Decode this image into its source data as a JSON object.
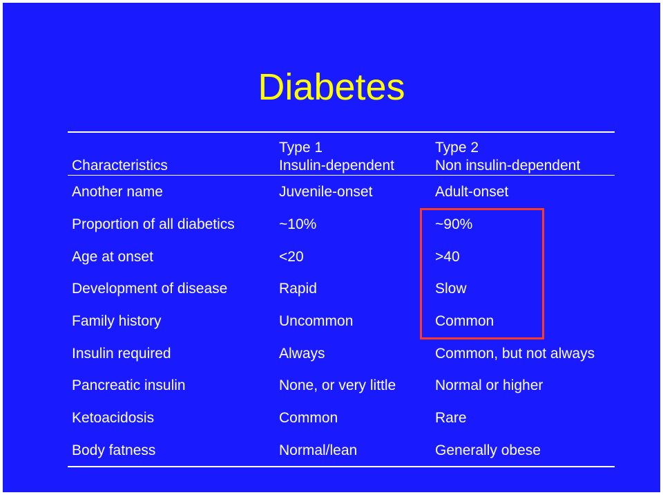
{
  "title": "Diabetes",
  "colors": {
    "background": "#1a1aff",
    "title": "#ffff00",
    "text": "#ffffff",
    "highlight": "#ff3b1f"
  },
  "header": {
    "col1": "Characteristics",
    "col2_line1": "Type 1",
    "col2_line2": "Insulin-dependent",
    "col3_line1": "Type 2",
    "col3_line2": "Non insulin-dependent"
  },
  "rows": [
    {
      "characteristic": "Another name",
      "type1": "Juvenile-onset",
      "type2": "Adult-onset"
    },
    {
      "characteristic": "Proportion of all diabetics",
      "type1": "~10%",
      "type2": "~90%"
    },
    {
      "characteristic": "Age at onset",
      "type1": "<20",
      "type2": ">40"
    },
    {
      "characteristic": "Development of disease",
      "type1": "Rapid",
      "type2": "Slow"
    },
    {
      "characteristic": "Family history",
      "type1": "Uncommon",
      "type2": "Common"
    },
    {
      "characteristic": "Insulin required",
      "type1": "Always",
      "type2": "Common, but not always"
    },
    {
      "characteristic": "Pancreatic insulin",
      "type1": "None, or very little",
      "type2": "Normal or higher"
    },
    {
      "characteristic": "Ketoacidosis",
      "type1": "Common",
      "type2": "Rare"
    },
    {
      "characteristic": "Body fatness",
      "type1": "Normal/lean",
      "type2": "Generally obese"
    }
  ]
}
